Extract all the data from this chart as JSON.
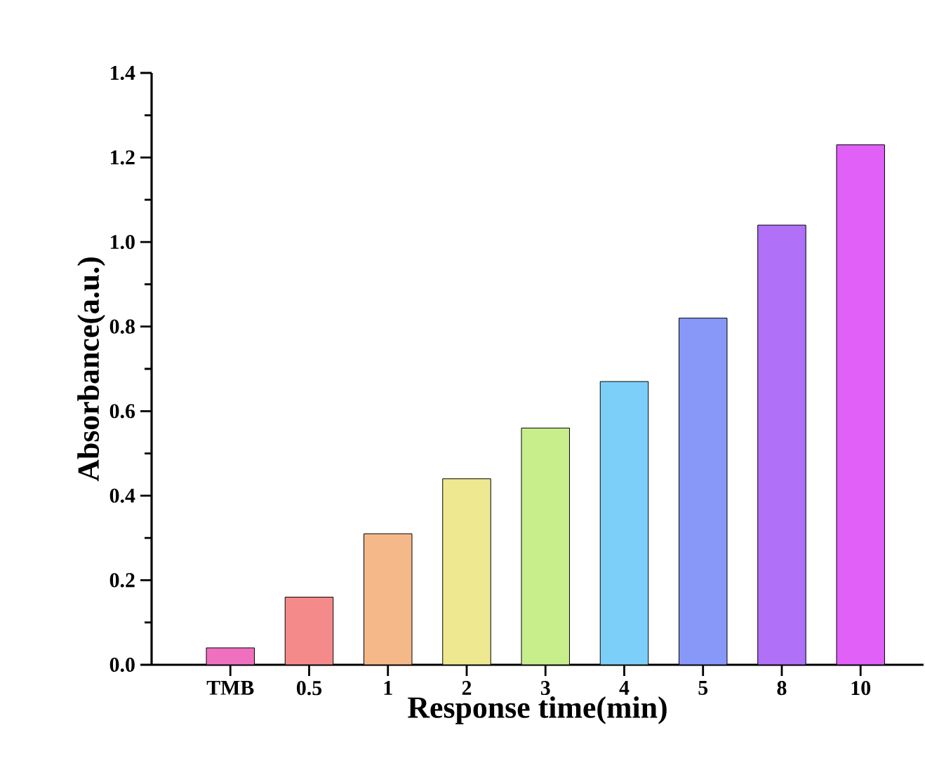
{
  "chart_data": {
    "type": "bar",
    "xlabel": "Response time(min)",
    "ylabel": "Absorbance(a.u.)",
    "categories": [
      "TMB",
      "0.5",
      "1",
      "2",
      "3",
      "4",
      "5",
      "8",
      "10"
    ],
    "values": [
      0.04,
      0.16,
      0.31,
      0.44,
      0.56,
      0.67,
      0.82,
      1.04,
      1.23
    ],
    "colors": [
      "#f070c0",
      "#f58a8a",
      "#f5b888",
      "#eee890",
      "#c8ee8c",
      "#7ccff8",
      "#8898f8",
      "#b070f8",
      "#e060f8"
    ],
    "ylim": [
      0,
      1.4
    ],
    "yticks": [
      {
        "value": 0,
        "label": "0.0"
      },
      0.2,
      0.4,
      0.6,
      0.8,
      {
        "value": 1,
        "label": "1.0"
      },
      1.2,
      1.4
    ]
  }
}
